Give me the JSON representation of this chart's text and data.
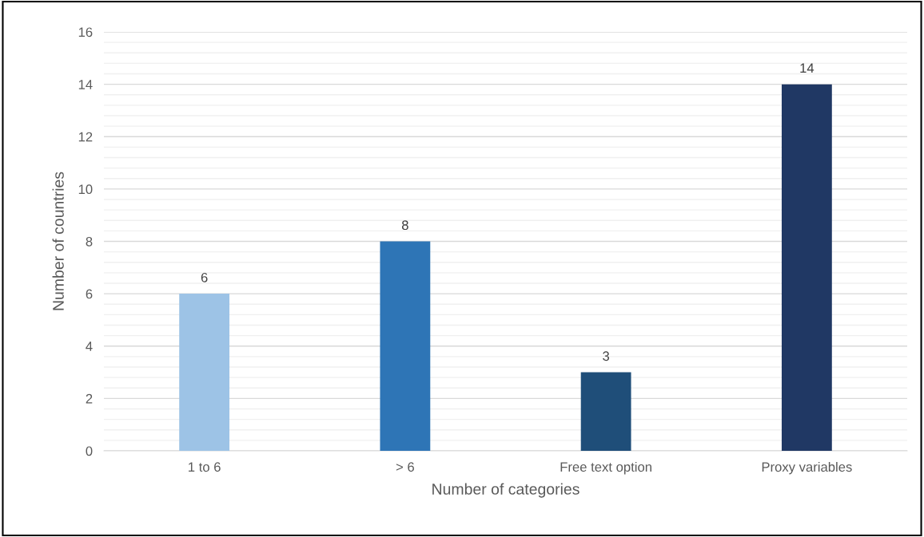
{
  "chart_data": {
    "type": "bar",
    "xlabel": "Number of categories",
    "ylabel": "Number of countries",
    "categories": [
      "1 to 6",
      "> 6",
      "Free text option",
      "Proxy variables"
    ],
    "values": [
      6,
      8,
      3,
      14
    ],
    "colors": [
      "#9dc3e6",
      "#2e75b6",
      "#1f4e79",
      "#203864"
    ],
    "ylim": [
      0,
      16
    ],
    "yticks": [
      0,
      2,
      4,
      6,
      8,
      10,
      12,
      14,
      16
    ],
    "grid": "y",
    "data_labels": true
  }
}
